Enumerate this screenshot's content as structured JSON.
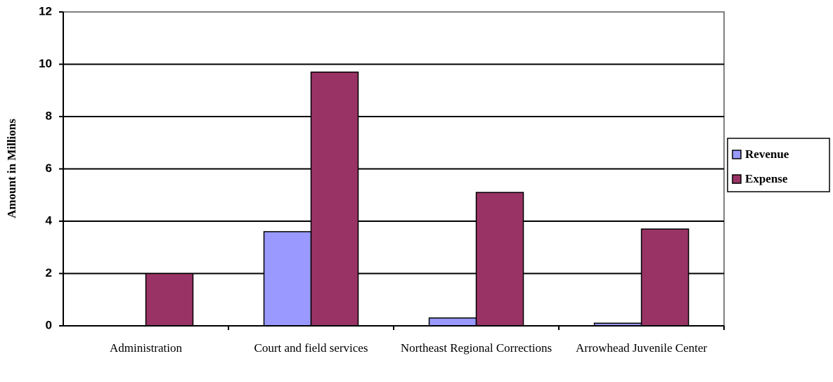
{
  "chart_data": {
    "type": "bar",
    "y_label": "Amount in Millions",
    "categories": [
      "Administration",
      "Court and field services",
      "Northeast Regional Corrections",
      "Arrowhead Juvenile Center"
    ],
    "series": [
      {
        "name": "Revenue",
        "color": "#9999ff",
        "values": [
          0,
          3.6,
          0.3,
          0.1
        ]
      },
      {
        "name": "Expense",
        "color": "#993366",
        "values": [
          2.0,
          9.7,
          5.1,
          3.7
        ]
      }
    ],
    "ylim": [
      0,
      12
    ],
    "yticks": [
      0,
      2,
      4,
      6,
      8,
      10,
      12
    ],
    "grid": true,
    "legend": "right"
  }
}
